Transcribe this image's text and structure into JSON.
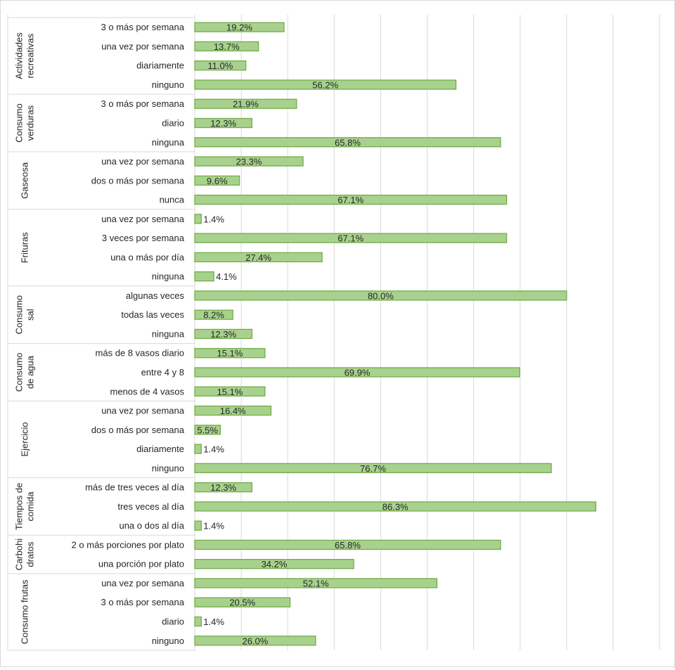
{
  "chart_data": {
    "type": "bar",
    "orientation": "horizontal",
    "grid": true,
    "xlim": [
      0,
      100
    ],
    "colors": {
      "bar_fill": "#a9d18e",
      "bar_stroke": "#70ad47",
      "grid": "#d9d9d9",
      "text": "#262626"
    },
    "groups": [
      {
        "label": "Actividades recreativas",
        "label_lines": [
          "Actividades",
          "recreativas"
        ],
        "categories": [
          "3 o más por semana",
          "una vez por semana",
          "diariamente",
          "ninguno"
        ],
        "values": [
          19.2,
          13.7,
          11.0,
          56.2
        ],
        "value_labels": [
          "19.2%",
          "13.7%",
          "11.0%",
          "56.2%"
        ]
      },
      {
        "label": "Consumo verduras",
        "label_lines": [
          "Consumo",
          "verduras"
        ],
        "categories": [
          "3 o más por semana",
          "diario",
          "ninguna"
        ],
        "values": [
          21.9,
          12.3,
          65.8
        ],
        "value_labels": [
          "21.9%",
          "12.3%",
          "65.8%"
        ]
      },
      {
        "label": "Gaseosa",
        "label_lines": [
          "Gaseosa"
        ],
        "categories": [
          "una vez por semana",
          "dos o más por semana",
          "nunca"
        ],
        "values": [
          23.3,
          9.6,
          67.1
        ],
        "value_labels": [
          "23.3%",
          "9.6%",
          "67.1%"
        ]
      },
      {
        "label": "Frituras",
        "label_lines": [
          "Frituras"
        ],
        "categories": [
          "una vez por semana",
          "3 veces por semana",
          "una o más por día",
          "ninguna"
        ],
        "values": [
          1.4,
          67.1,
          27.4,
          4.1
        ],
        "value_labels": [
          "1.4%",
          "67.1%",
          "27.4%",
          "4.1%"
        ]
      },
      {
        "label": "Consumo sal",
        "label_lines": [
          "Consumo",
          "sal"
        ],
        "categories": [
          "algunas veces",
          "todas las veces",
          "ninguna"
        ],
        "values": [
          80.0,
          8.2,
          12.3
        ],
        "value_labels": [
          "80.0%",
          "8.2%",
          "12.3%"
        ]
      },
      {
        "label": "Consumo de agua",
        "label_lines": [
          "Consumo",
          "de agua"
        ],
        "categories": [
          "más de 8 vasos diario",
          "entre 4 y 8",
          "menos de 4 vasos"
        ],
        "values": [
          15.1,
          69.9,
          15.1
        ],
        "value_labels": [
          "15.1%",
          "69.9%",
          "15.1%"
        ]
      },
      {
        "label": "Ejercicio",
        "label_lines": [
          "Ejercicio"
        ],
        "categories": [
          "una vez por semana",
          "dos o más por semana",
          "diariamente",
          "ninguno"
        ],
        "values": [
          16.4,
          5.5,
          1.4,
          76.7
        ],
        "value_labels": [
          "16.4%",
          "5.5%",
          "1.4%",
          "76.7%"
        ]
      },
      {
        "label": "Tiempos de comida",
        "label_lines": [
          "Tiempos de",
          "comida"
        ],
        "categories": [
          "más de tres veces al día",
          "tres veces al día",
          "una o dos al día"
        ],
        "values": [
          12.3,
          86.3,
          1.4
        ],
        "value_labels": [
          "12.3%",
          "86.3%",
          "1.4%"
        ]
      },
      {
        "label": "Carbohidratos",
        "label_lines": [
          "Carbohi",
          "dratos"
        ],
        "categories": [
          "2 o más porciones por plato",
          "una porción por plato"
        ],
        "values": [
          65.8,
          34.2
        ],
        "value_labels": [
          "65.8%",
          "34.2%"
        ]
      },
      {
        "label": "Consumo frutas",
        "label_lines": [
          "Consumo frutas"
        ],
        "categories": [
          "una vez por semana",
          "3 o más por semana",
          "diario",
          "ninguno"
        ],
        "values": [
          52.1,
          20.5,
          1.4,
          26.0
        ],
        "value_labels": [
          "52.1%",
          "20.5%",
          "1.4%",
          "26.0%"
        ]
      }
    ]
  }
}
